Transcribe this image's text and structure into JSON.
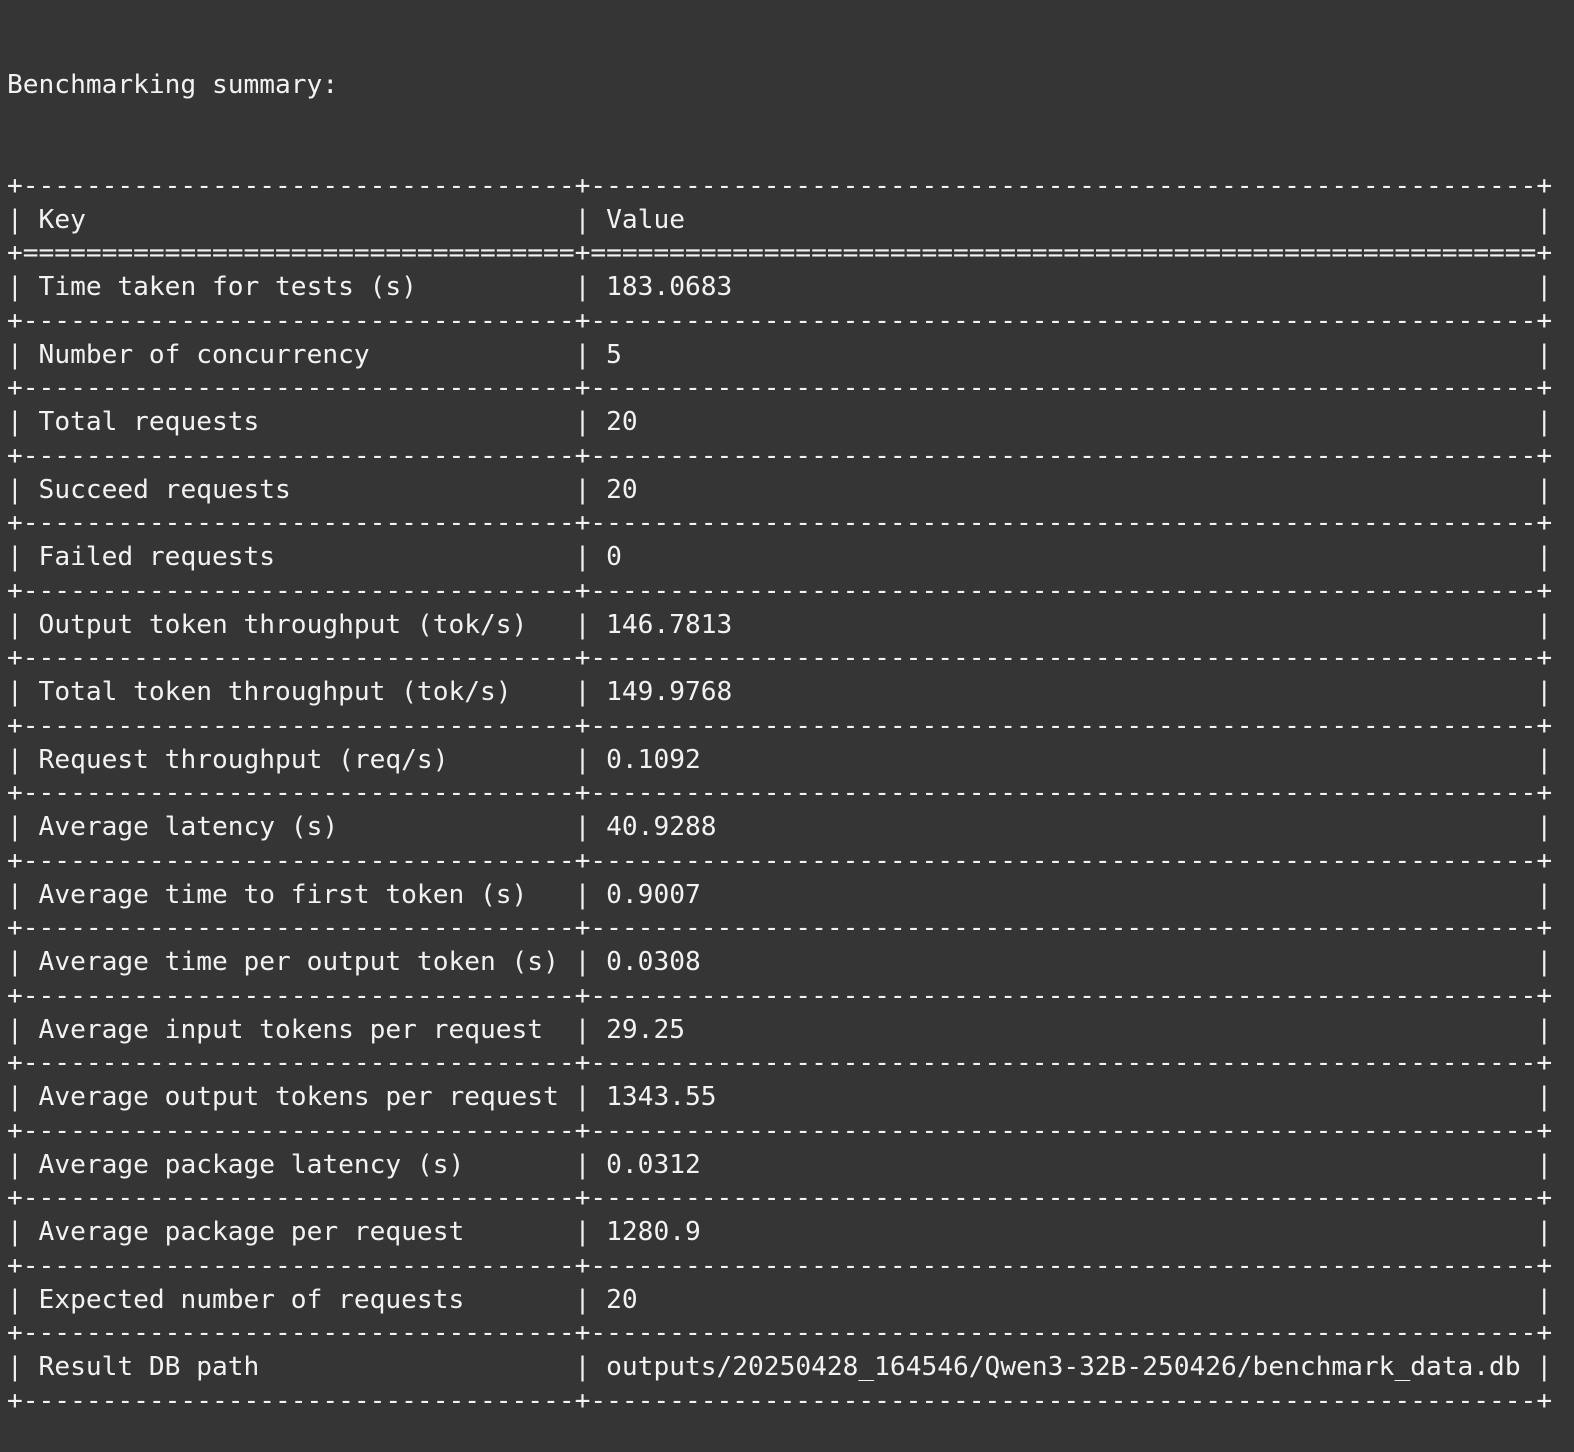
{
  "title": "Benchmarking summary:",
  "colors": {
    "background": "#353535",
    "text": "#f2f2f2"
  },
  "table": {
    "headers": {
      "key": "Key",
      "value": "Value"
    },
    "rows": [
      {
        "key": "Time taken for tests (s)",
        "value": "183.0683"
      },
      {
        "key": "Number of concurrency",
        "value": "5"
      },
      {
        "key": "Total requests",
        "value": "20"
      },
      {
        "key": "Succeed requests",
        "value": "20"
      },
      {
        "key": "Failed requests",
        "value": "0"
      },
      {
        "key": "Output token throughput (tok/s)",
        "value": "146.7813"
      },
      {
        "key": "Total token throughput (tok/s)",
        "value": "149.9768"
      },
      {
        "key": "Request throughput (req/s)",
        "value": "0.1092"
      },
      {
        "key": "Average latency (s)",
        "value": "40.9288"
      },
      {
        "key": "Average time to first token (s)",
        "value": "0.9007"
      },
      {
        "key": "Average time per output token (s)",
        "value": "0.0308"
      },
      {
        "key": "Average input tokens per request",
        "value": "29.25"
      },
      {
        "key": "Average output tokens per request",
        "value": "1343.55"
      },
      {
        "key": "Average package latency (s)",
        "value": "0.0312"
      },
      {
        "key": "Average package per request",
        "value": "1280.9"
      },
      {
        "key": "Expected number of requests",
        "value": "20"
      },
      {
        "key": "Result DB path",
        "value": "outputs/20250428_164546/Qwen3-32B-250426/benchmark_data.db"
      }
    ]
  }
}
